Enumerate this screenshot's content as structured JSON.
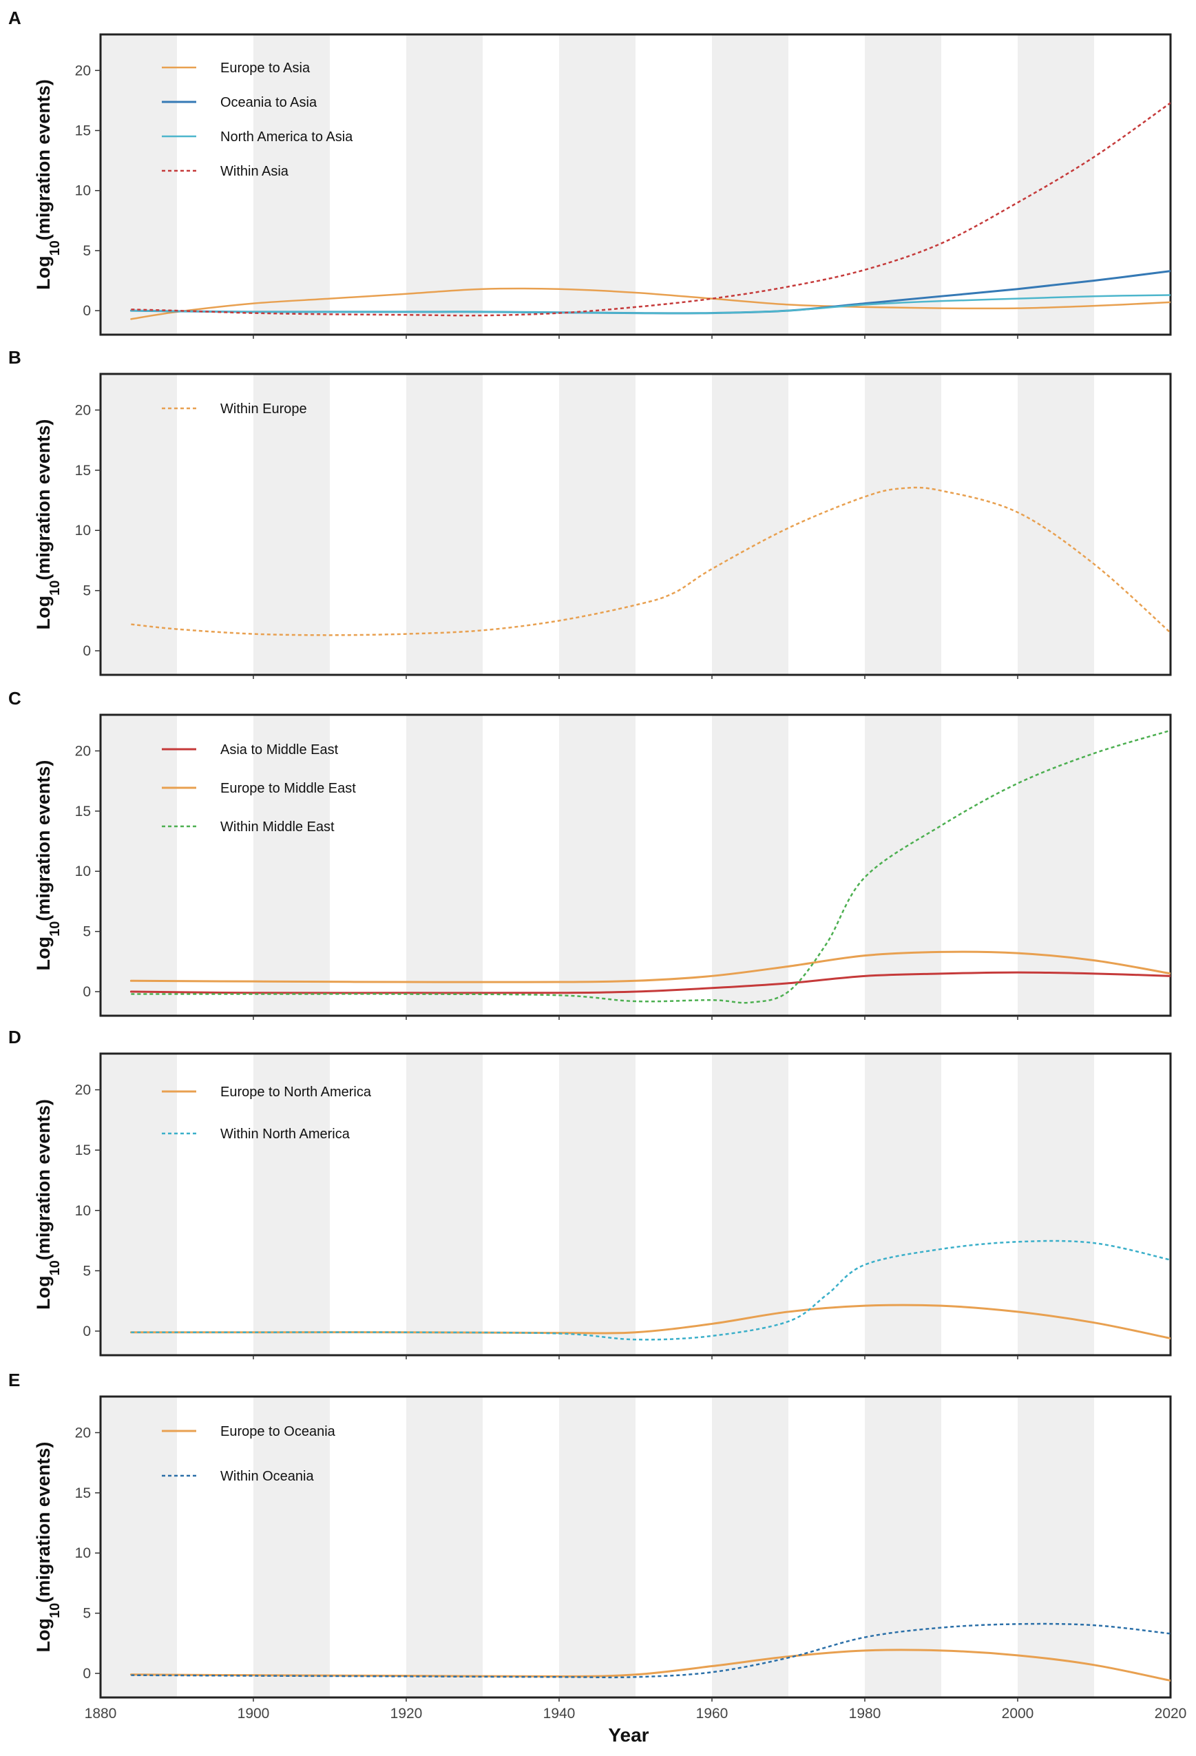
{
  "figure": {
    "xlabel": "Year",
    "x_ticks": [
      1880,
      1900,
      1920,
      1940,
      1960,
      1980,
      2000,
      2020
    ],
    "shading": "alternating grey bands every 10 years (1880-1890, 1900-1910, ...)"
  },
  "chart_data": [
    {
      "panel": "A",
      "type": "line",
      "title": "",
      "xlabel": "",
      "ylabel_main": "Log",
      "ylabel_sub": "10",
      "ylabel_rest": "(migration events)",
      "xlim": [
        1880,
        2020
      ],
      "ylim": [
        -2,
        23
      ],
      "yticks": [
        0,
        5,
        10,
        15,
        20
      ],
      "legend_position": "top-left",
      "series": [
        {
          "name": "Europe to Asia",
          "color": "#E8A050",
          "style": "solid",
          "width": 2.5,
          "x": [
            1884,
            1890,
            1900,
            1910,
            1920,
            1930,
            1940,
            1950,
            1960,
            1970,
            1980,
            1990,
            2000,
            2010,
            2020
          ],
          "y": [
            -0.7,
            -0.1,
            0.6,
            1.0,
            1.4,
            1.8,
            1.8,
            1.5,
            1.0,
            0.5,
            0.3,
            0.2,
            0.2,
            0.4,
            0.7
          ]
        },
        {
          "name": "Oceania to Asia",
          "color": "#3579B5",
          "style": "solid",
          "width": 3,
          "x": [
            1884,
            1890,
            1900,
            1910,
            1920,
            1930,
            1940,
            1950,
            1960,
            1970,
            1980,
            1990,
            2000,
            2010,
            2020
          ],
          "y": [
            0.0,
            -0.05,
            -0.1,
            -0.1,
            -0.1,
            -0.1,
            -0.15,
            -0.2,
            -0.2,
            0.0,
            0.6,
            1.2,
            1.8,
            2.5,
            3.3
          ]
        },
        {
          "name": "North America to Asia",
          "color": "#4DB6CC",
          "style": "solid",
          "width": 2.5,
          "x": [
            1884,
            1890,
            1900,
            1910,
            1920,
            1930,
            1940,
            1950,
            1960,
            1970,
            1980,
            1990,
            2000,
            2010,
            2020
          ],
          "y": [
            0.0,
            -0.05,
            -0.1,
            -0.1,
            -0.1,
            -0.1,
            -0.15,
            -0.2,
            -0.2,
            0.0,
            0.5,
            0.8,
            1.0,
            1.2,
            1.3
          ]
        },
        {
          "name": "Within Asia",
          "color": "#C53A3A",
          "style": "dashed",
          "width": 2.5,
          "x": [
            1884,
            1890,
            1900,
            1910,
            1920,
            1930,
            1940,
            1950,
            1960,
            1970,
            1980,
            1990,
            2000,
            2010,
            2020
          ],
          "y": [
            0.1,
            0.0,
            -0.2,
            -0.3,
            -0.35,
            -0.4,
            -0.2,
            0.3,
            1.0,
            2.0,
            3.4,
            5.6,
            9.0,
            12.8,
            17.3
          ]
        }
      ]
    },
    {
      "panel": "B",
      "type": "line",
      "title": "",
      "xlabel": "",
      "ylabel_main": "Log",
      "ylabel_sub": "10",
      "ylabel_rest": "(migration events)",
      "xlim": [
        1880,
        2020
      ],
      "ylim": [
        -2,
        23
      ],
      "yticks": [
        0,
        5,
        10,
        15,
        20
      ],
      "legend_position": "top-left",
      "series": [
        {
          "name": "Within Europe",
          "color": "#E8A050",
          "style": "dashed",
          "width": 2.5,
          "x": [
            1884,
            1890,
            1900,
            1910,
            1920,
            1930,
            1940,
            1950,
            1955,
            1960,
            1970,
            1980,
            1985,
            1990,
            2000,
            2010,
            2020
          ],
          "y": [
            2.2,
            1.8,
            1.4,
            1.3,
            1.4,
            1.7,
            2.5,
            3.8,
            4.8,
            6.8,
            10.2,
            12.8,
            13.5,
            13.3,
            11.5,
            7.2,
            1.5
          ]
        }
      ]
    },
    {
      "panel": "C",
      "type": "line",
      "title": "",
      "xlabel": "",
      "ylabel_main": "Log",
      "ylabel_sub": "10",
      "ylabel_rest": "(migration events)",
      "xlim": [
        1880,
        2020
      ],
      "ylim": [
        -2,
        23
      ],
      "yticks": [
        0,
        5,
        10,
        15,
        20
      ],
      "legend_position": "top-left",
      "series": [
        {
          "name": "Asia to Middle East",
          "color": "#C53A3A",
          "style": "solid",
          "width": 3,
          "x": [
            1884,
            1900,
            1920,
            1940,
            1950,
            1960,
            1970,
            1980,
            1990,
            2000,
            2010,
            2020
          ],
          "y": [
            0.0,
            -0.1,
            -0.1,
            -0.1,
            0.0,
            0.3,
            0.7,
            1.3,
            1.5,
            1.6,
            1.5,
            1.3
          ]
        },
        {
          "name": "Europe to Middle East",
          "color": "#E8A050",
          "style": "solid",
          "width": 3,
          "x": [
            1884,
            1900,
            1920,
            1940,
            1950,
            1960,
            1970,
            1980,
            1990,
            2000,
            2010,
            2020
          ],
          "y": [
            0.9,
            0.85,
            0.8,
            0.8,
            0.9,
            1.3,
            2.1,
            3.0,
            3.3,
            3.2,
            2.6,
            1.5
          ]
        },
        {
          "name": "Within Middle East",
          "color": "#4CAF50",
          "style": "dashed",
          "width": 2.5,
          "x": [
            1884,
            1900,
            1920,
            1940,
            1950,
            1960,
            1965,
            1970,
            1975,
            1980,
            1990,
            2000,
            2010,
            2020
          ],
          "y": [
            -0.2,
            -0.2,
            -0.2,
            -0.3,
            -0.8,
            -0.7,
            -0.9,
            0.0,
            4.0,
            9.5,
            13.8,
            17.3,
            19.8,
            21.7
          ]
        }
      ]
    },
    {
      "panel": "D",
      "type": "line",
      "title": "",
      "xlabel": "",
      "ylabel_main": "Log",
      "ylabel_sub": "10",
      "ylabel_rest": "(migration events)",
      "xlim": [
        1880,
        2020
      ],
      "ylim": [
        -2,
        23
      ],
      "yticks": [
        0,
        5,
        10,
        15,
        20
      ],
      "legend_position": "top-left",
      "series": [
        {
          "name": "Europe to North America",
          "color": "#E8A050",
          "style": "solid",
          "width": 3,
          "x": [
            1884,
            1900,
            1920,
            1940,
            1950,
            1960,
            1970,
            1980,
            1990,
            2000,
            2010,
            2020
          ],
          "y": [
            -0.1,
            -0.1,
            -0.1,
            -0.15,
            -0.1,
            0.6,
            1.6,
            2.1,
            2.1,
            1.6,
            0.7,
            -0.6
          ]
        },
        {
          "name": "Within  North America",
          "color": "#3AAFC9",
          "style": "dashed",
          "width": 2.5,
          "x": [
            1884,
            1900,
            1920,
            1940,
            1950,
            1960,
            1970,
            1975,
            1980,
            1990,
            2000,
            2010,
            2020
          ],
          "y": [
            -0.1,
            -0.1,
            -0.1,
            -0.2,
            -0.7,
            -0.4,
            0.8,
            3.0,
            5.5,
            6.8,
            7.4,
            7.3,
            5.9
          ]
        }
      ]
    },
    {
      "panel": "E",
      "type": "line",
      "title": "",
      "xlabel": "Year",
      "ylabel_main": "Log",
      "ylabel_sub": "10",
      "ylabel_rest": "(migration events)",
      "xlim": [
        1880,
        2020
      ],
      "ylim": [
        -2,
        23
      ],
      "yticks": [
        0,
        5,
        10,
        15,
        20
      ],
      "legend_position": "top-left",
      "series": [
        {
          "name": "Europe to Oceania",
          "color": "#E8A050",
          "style": "solid",
          "width": 3,
          "x": [
            1884,
            1900,
            1920,
            1940,
            1950,
            1960,
            1970,
            1980,
            1990,
            2000,
            2010,
            2020
          ],
          "y": [
            -0.1,
            -0.15,
            -0.2,
            -0.25,
            -0.1,
            0.6,
            1.4,
            1.9,
            1.9,
            1.5,
            0.7,
            -0.6
          ]
        },
        {
          "name": "Within  Oceania",
          "color": "#2A6FA8",
          "style": "dashed",
          "width": 2.5,
          "x": [
            1884,
            1900,
            1920,
            1940,
            1950,
            1960,
            1970,
            1980,
            1990,
            2000,
            2010,
            2020
          ],
          "y": [
            -0.15,
            -0.2,
            -0.25,
            -0.3,
            -0.3,
            0.1,
            1.3,
            3.0,
            3.8,
            4.1,
            4.0,
            3.3
          ]
        }
      ]
    }
  ]
}
